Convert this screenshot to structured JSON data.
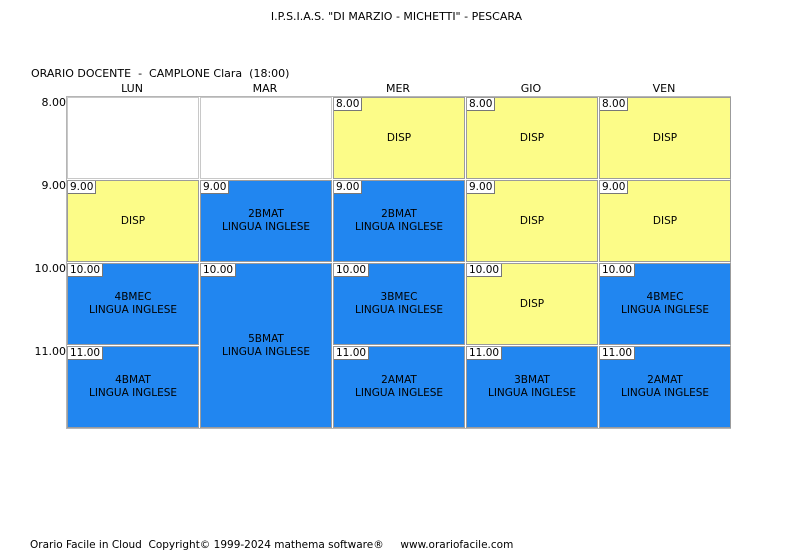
{
  "header": {
    "school": "I.P.S.I.A.S. \"DI MARZIO - MICHETTI\" - PESCARA",
    "teacher_line": "ORARIO DOCENTE  -  CAMPLONE Clara  (18:00)"
  },
  "days": [
    "LUN",
    "MAR",
    "MER",
    "GIO",
    "VEN"
  ],
  "times": [
    "8.00",
    "9.00",
    "10.00",
    "11.00"
  ],
  "schedule": [
    {
      "day": "LUN",
      "start": "9.00",
      "span": 1,
      "lines": [
        "DISP"
      ],
      "kind": "disp"
    },
    {
      "day": "LUN",
      "start": "10.00",
      "span": 1,
      "lines": [
        "4BMEC",
        "LINGUA INGLESE"
      ],
      "kind": "lesson"
    },
    {
      "day": "LUN",
      "start": "11.00",
      "span": 1,
      "lines": [
        "4BMAT",
        "LINGUA INGLESE"
      ],
      "kind": "lesson"
    },
    {
      "day": "MAR",
      "start": "9.00",
      "span": 1,
      "lines": [
        "2BMAT",
        "LINGUA INGLESE"
      ],
      "kind": "lesson"
    },
    {
      "day": "MAR",
      "start": "10.00",
      "span": 2,
      "lines": [
        "5BMAT",
        "LINGUA INGLESE"
      ],
      "kind": "lesson"
    },
    {
      "day": "MER",
      "start": "8.00",
      "span": 1,
      "lines": [
        "DISP"
      ],
      "kind": "disp"
    },
    {
      "day": "MER",
      "start": "9.00",
      "span": 1,
      "lines": [
        "2BMAT",
        "LINGUA INGLESE"
      ],
      "kind": "lesson"
    },
    {
      "day": "MER",
      "start": "10.00",
      "span": 1,
      "lines": [
        "3BMEC",
        "LINGUA INGLESE"
      ],
      "kind": "lesson"
    },
    {
      "day": "MER",
      "start": "11.00",
      "span": 1,
      "lines": [
        "2AMAT",
        "LINGUA INGLESE"
      ],
      "kind": "lesson"
    },
    {
      "day": "GIO",
      "start": "8.00",
      "span": 1,
      "lines": [
        "DISP"
      ],
      "kind": "disp"
    },
    {
      "day": "GIO",
      "start": "9.00",
      "span": 1,
      "lines": [
        "DISP"
      ],
      "kind": "disp"
    },
    {
      "day": "GIO",
      "start": "10.00",
      "span": 1,
      "lines": [
        "DISP"
      ],
      "kind": "disp"
    },
    {
      "day": "GIO",
      "start": "11.00",
      "span": 1,
      "lines": [
        "3BMAT",
        "LINGUA INGLESE"
      ],
      "kind": "lesson"
    },
    {
      "day": "VEN",
      "start": "8.00",
      "span": 1,
      "lines": [
        "DISP"
      ],
      "kind": "disp"
    },
    {
      "day": "VEN",
      "start": "9.00",
      "span": 1,
      "lines": [
        "DISP"
      ],
      "kind": "disp"
    },
    {
      "day": "VEN",
      "start": "10.00",
      "span": 1,
      "lines": [
        "4BMEC",
        "LINGUA INGLESE"
      ],
      "kind": "lesson"
    },
    {
      "day": "VEN",
      "start": "11.00",
      "span": 1,
      "lines": [
        "2AMAT",
        "LINGUA INGLESE"
      ],
      "kind": "lesson"
    }
  ],
  "colors": {
    "disp": "#fcfc88",
    "lesson": "#2186f0"
  },
  "footer": "Orario Facile in Cloud  Copyright© 1999-2024 mathema software®     www.orariofacile.com"
}
